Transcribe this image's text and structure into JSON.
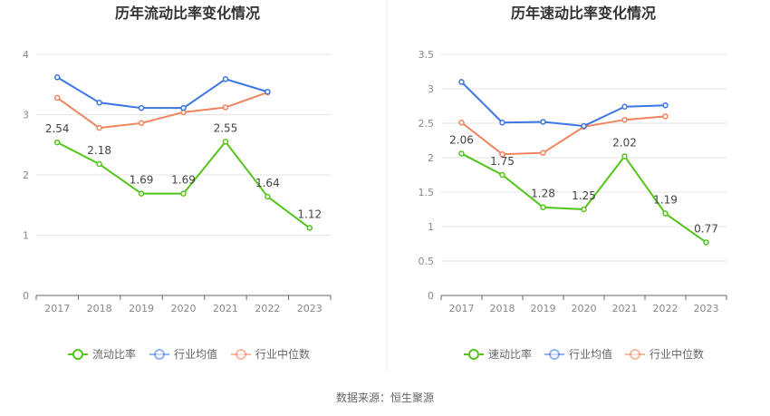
{
  "chart_data": [
    {
      "type": "line",
      "title": "历年流动比率变化情况",
      "categories": [
        "2017",
        "2018",
        "2019",
        "2020",
        "2021",
        "2022",
        "2023"
      ],
      "ylim": [
        0,
        4
      ],
      "yticks": [
        0,
        1,
        2,
        3,
        4
      ],
      "ytick_labels": [
        "0",
        "1",
        "2",
        "3",
        "4"
      ],
      "series": [
        {
          "name": "流动比率",
          "color": "#52c41a",
          "values": [
            2.54,
            2.18,
            1.69,
            1.69,
            2.55,
            1.64,
            1.12
          ],
          "labels": [
            "2.54",
            "2.18",
            "1.69",
            "1.69",
            "2.55",
            "1.64",
            "1.12"
          ]
        },
        {
          "name": "行业均值",
          "color": "#3b76e1",
          "values": [
            3.62,
            3.2,
            3.11,
            3.11,
            3.59,
            3.38,
            null
          ]
        },
        {
          "name": "行业中位数",
          "color": "#f0845e",
          "values": [
            3.28,
            2.78,
            2.86,
            3.04,
            3.12,
            3.37,
            null
          ]
        }
      ]
    },
    {
      "type": "line",
      "title": "历年速动比率变化情况",
      "categories": [
        "2017",
        "2018",
        "2019",
        "2020",
        "2021",
        "2022",
        "2023"
      ],
      "ylim": [
        0,
        3.5
      ],
      "yticks": [
        0,
        0.5,
        1,
        1.5,
        2,
        2.5,
        3,
        3.5
      ],
      "ytick_labels": [
        "0",
        "0.5",
        "1",
        "1.5",
        "2",
        "2.5",
        "3",
        "3.5"
      ],
      "series": [
        {
          "name": "速动比率",
          "color": "#52c41a",
          "values": [
            2.06,
            1.75,
            1.28,
            1.25,
            2.02,
            1.19,
            0.77
          ],
          "labels": [
            "2.06",
            "1.75",
            "1.28",
            "1.25",
            "2.02",
            "1.19",
            "0.77"
          ]
        },
        {
          "name": "行业均值",
          "color": "#3b76e1",
          "values": [
            3.1,
            2.51,
            2.52,
            2.46,
            2.74,
            2.76,
            null
          ]
        },
        {
          "name": "行业中位数",
          "color": "#f0845e",
          "values": [
            2.51,
            2.05,
            2.07,
            2.45,
            2.55,
            2.6,
            null
          ]
        }
      ]
    }
  ],
  "source": "数据来源：恒生聚源"
}
